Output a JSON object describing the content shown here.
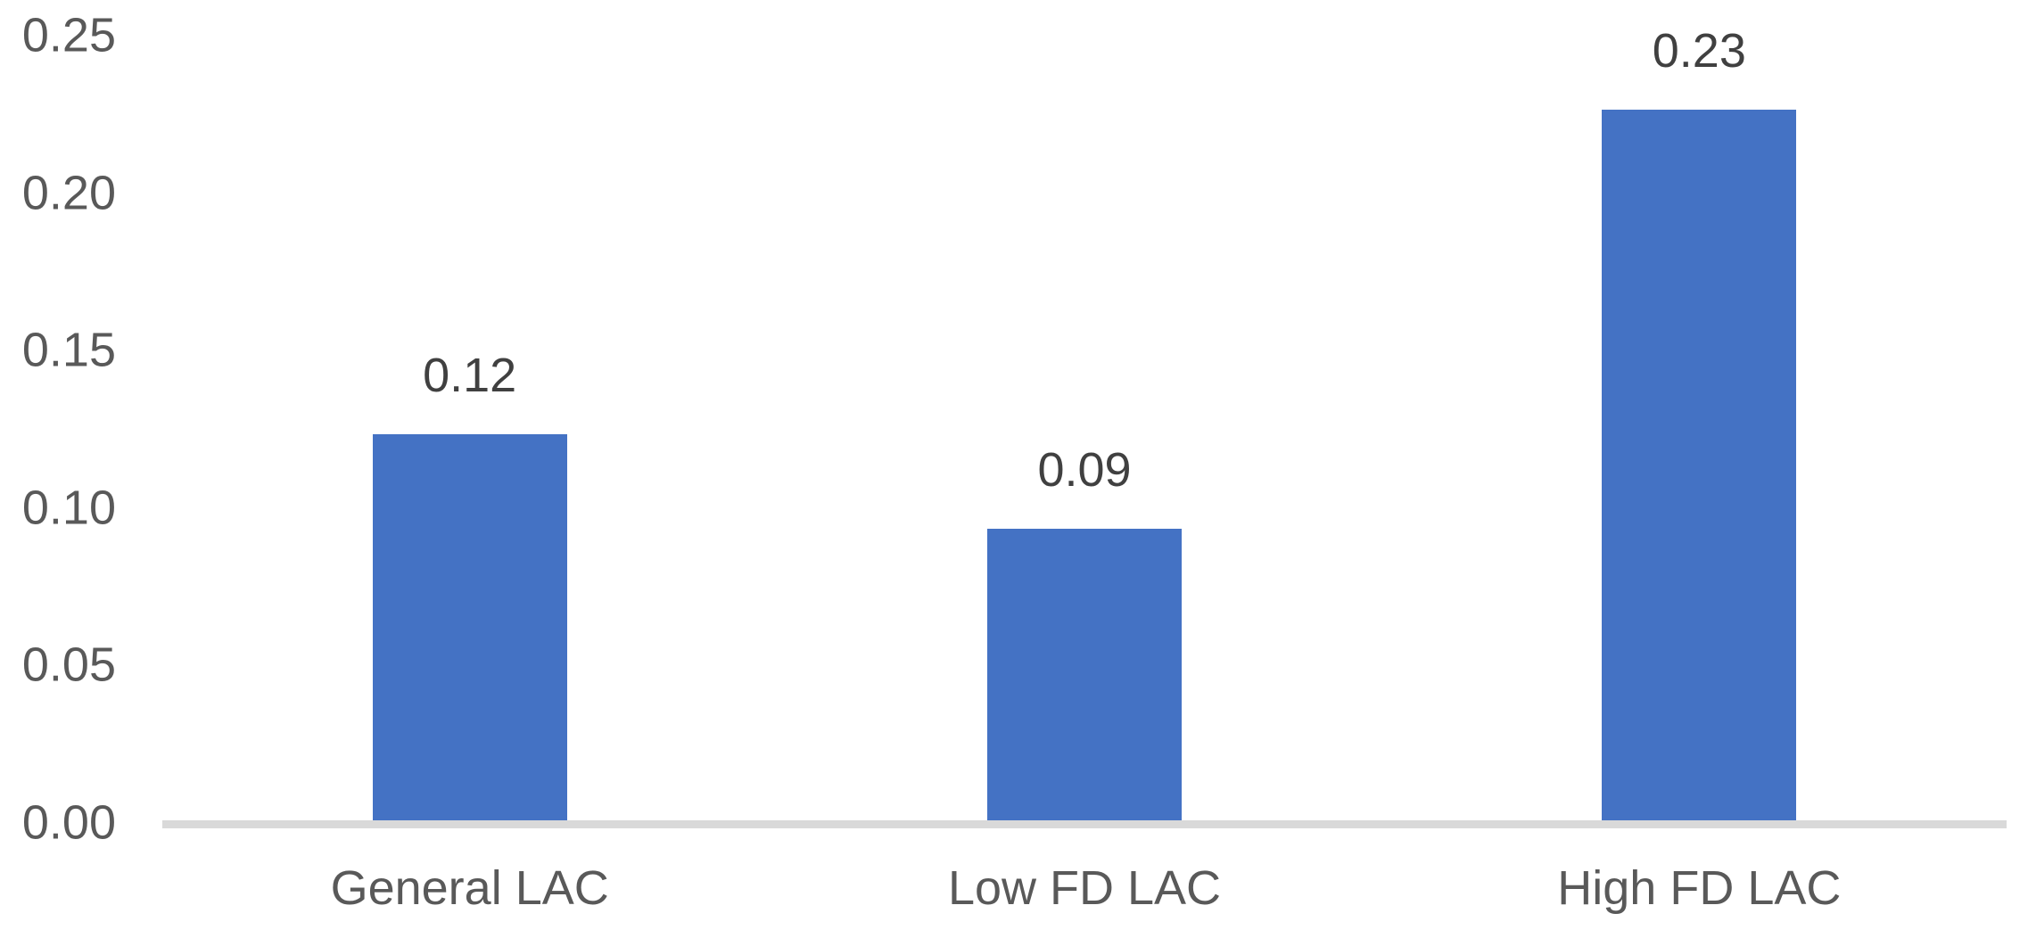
{
  "chart_data": {
    "type": "bar",
    "title": "",
    "xlabel": "",
    "ylabel": "",
    "categories": [
      "General LAC",
      "Low FD LAC",
      "High FD LAC"
    ],
    "values": [
      0.12,
      0.09,
      0.23
    ],
    "data_labels": [
      "0.12",
      "0.09",
      "0.23"
    ],
    "values_precise_est": [
      0.123,
      0.093,
      0.226
    ],
    "y_ticks": [
      "0.25",
      "0.20",
      "0.15",
      "0.10",
      "0.05",
      "0.00"
    ],
    "ylim": [
      0,
      0.25
    ],
    "grid": false,
    "legend": false,
    "colors": {
      "bar": "#4472C4",
      "axis_line": "#D9D9D9",
      "tick_label": "#595959",
      "data_label": "#404040",
      "background": "#FFFFFF"
    }
  }
}
